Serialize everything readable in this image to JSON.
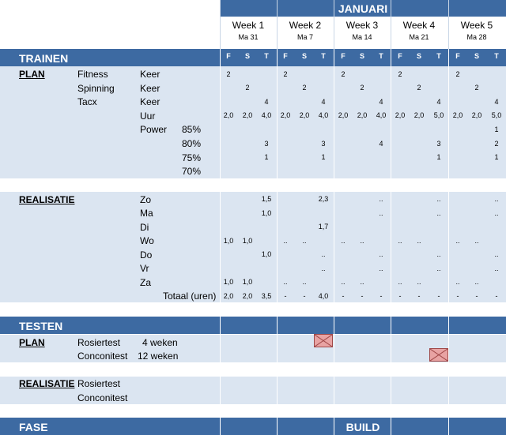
{
  "header": {
    "month": "JANUARI"
  },
  "weeks": [
    {
      "label": "Week 1",
      "date": "Ma 31"
    },
    {
      "label": "Week 2",
      "date": "Ma 7"
    },
    {
      "label": "Week 3",
      "date": "Ma 14"
    },
    {
      "label": "Week 4",
      "date": "Ma 21"
    },
    {
      "label": "Week 5",
      "date": "Ma 28"
    }
  ],
  "days": [
    "F",
    "S",
    "T"
  ],
  "sections": {
    "trainen": "TRAINEN",
    "testen": "TESTEN",
    "fase": "FASE",
    "fase_value": "BUILD"
  },
  "plan": {
    "title": "PLAN",
    "activities": [
      "Fitness",
      "Spinning",
      "Tacx"
    ],
    "units": [
      "Keer",
      "Keer",
      "Keer",
      "Uur"
    ],
    "power_label": "Power",
    "power_levels": [
      "85%",
      "80%",
      "75%",
      "70%"
    ],
    "rows": [
      [
        "2",
        "",
        "",
        "2",
        "",
        "",
        "2",
        "",
        "",
        "2",
        "",
        "",
        "2",
        "",
        ""
      ],
      [
        "",
        "2",
        "",
        "",
        "2",
        "",
        "",
        "2",
        "",
        "",
        "2",
        "",
        "",
        "2",
        ""
      ],
      [
        "",
        "",
        "4",
        "",
        "",
        "4",
        "",
        "",
        "4",
        "",
        "",
        "4",
        "",
        "",
        "4"
      ],
      [
        "2,0",
        "2,0",
        "4,0",
        "2,0",
        "2,0",
        "4,0",
        "2,0",
        "2,0",
        "4,0",
        "2,0",
        "2,0",
        "5,0",
        "2,0",
        "2,0",
        "5,0"
      ],
      [
        "",
        "",
        "",
        "",
        "",
        "",
        "",
        "",
        "",
        "",
        "",
        "",
        "",
        "",
        "1"
      ],
      [
        "",
        "",
        "3",
        "",
        "",
        "3",
        "",
        "",
        "4",
        "",
        "",
        "3",
        "",
        "",
        "2"
      ],
      [
        "",
        "",
        "1",
        "",
        "",
        "1",
        "",
        "",
        "",
        "",
        "",
        "1",
        "",
        "",
        "1"
      ],
      [
        "",
        "",
        "",
        "",
        "",
        "",
        "",
        "",
        "",
        "",
        "",
        "",
        "",
        "",
        ""
      ]
    ]
  },
  "realisatie": {
    "title": "REALISATIE",
    "days": [
      "Zo",
      "Ma",
      "Di",
      "Wo",
      "Do",
      "Vr",
      "Za"
    ],
    "total_label": "Totaal (uren)",
    "rows": [
      [
        "",
        "",
        "1,5",
        "",
        "",
        "2,3",
        "",
        "",
        "..",
        "",
        "",
        "..",
        "",
        "",
        ".."
      ],
      [
        "",
        "",
        "1,0",
        "",
        "",
        "",
        "",
        "",
        "..",
        "",
        "",
        "..",
        "",
        "",
        ".."
      ],
      [
        "",
        "",
        "",
        "",
        "",
        "1,7",
        "",
        "",
        "",
        "",
        "",
        "",
        "",
        "",
        ""
      ],
      [
        "1,0",
        "1,0",
        "",
        "..",
        "..",
        "",
        "..",
        "..",
        "",
        "..",
        "..",
        "",
        "..",
        "..",
        ""
      ],
      [
        "",
        "",
        "1,0",
        "",
        "",
        "..",
        "",
        "",
        "..",
        "",
        "",
        "..",
        "",
        "",
        ".."
      ],
      [
        "",
        "",
        "",
        "",
        "",
        "..",
        "",
        "",
        "..",
        "",
        "",
        "..",
        "",
        "",
        ".."
      ],
      [
        "1,0",
        "1,0",
        "",
        "..",
        "..",
        "",
        "..",
        "..",
        "",
        "..",
        "..",
        "",
        "..",
        "..",
        ""
      ],
      [
        "2,0",
        "2,0",
        "3,5",
        "-",
        "-",
        "4,0",
        "-",
        "-",
        "-",
        "-",
        "-",
        "-",
        "-",
        "-",
        "-"
      ]
    ]
  },
  "testen": {
    "plan_title": "PLAN",
    "plan_rows": [
      {
        "name": "Rosiertest",
        "interval": "4 weken"
      },
      {
        "name": "Conconitest",
        "interval": "12 weken"
      }
    ],
    "realisatie_title": "REALISATIE",
    "realisatie_rows": [
      "Rosiertest",
      "Conconitest"
    ]
  },
  "colors": {
    "header": "#3d6aa2",
    "band": "#dbe5f1",
    "marker_fill": "#e8a3a3",
    "marker_border": "#a04848"
  }
}
